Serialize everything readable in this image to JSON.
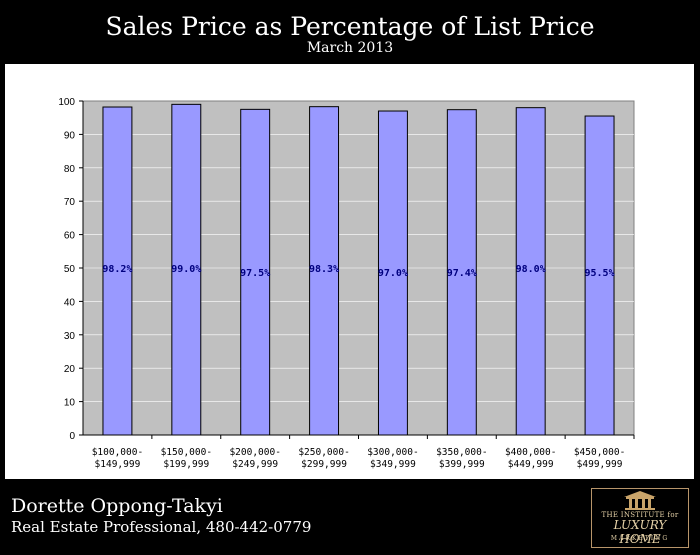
{
  "chart_data": {
    "type": "bar",
    "title": "Sales Price as Percentage of List Price",
    "subtitle": "March 2013",
    "categories": [
      [
        "$100,000-",
        "$149,999"
      ],
      [
        "$150,000-",
        "$199,999"
      ],
      [
        "$200,000-",
        "$249,999"
      ],
      [
        "$250,000-",
        "$299,999"
      ],
      [
        "$300,000-",
        "$349,999"
      ],
      [
        "$350,000-",
        "$399,999"
      ],
      [
        "$400,000-",
        "$449,999"
      ],
      [
        "$450,000-",
        "$499,999"
      ]
    ],
    "values": [
      98.2,
      99.0,
      97.5,
      98.3,
      97.0,
      97.4,
      98.0,
      95.5
    ],
    "data_labels": [
      "98.2%",
      "99.0%",
      "97.5%",
      "98.3%",
      "97.0%",
      "97.4%",
      "98.0%",
      "95.5%"
    ],
    "ylim": [
      0,
      100
    ],
    "yticks": [
      0,
      10,
      20,
      30,
      40,
      50,
      60,
      70,
      80,
      90,
      100
    ],
    "grid": true,
    "colors": {
      "bar": "#9999ff",
      "plot_bg": "#c0c0c0",
      "label": "#000080"
    }
  },
  "footer": {
    "agent_name": "Dorette Oppong-Takyi",
    "agent_line": "Real Estate Professional, 480-442-0779"
  },
  "logo": {
    "line1": "THE INSTITUTE for",
    "line2": "LUXURY HOME",
    "line3": "MARKETING"
  }
}
